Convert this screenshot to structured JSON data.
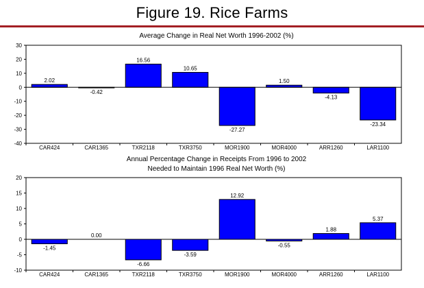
{
  "figure_title": "Figure 19. Rice Farms",
  "colors": {
    "bar": "#0000ff",
    "rule": "#a31f24",
    "axis": "#000000"
  },
  "chart_data": [
    {
      "type": "bar",
      "title": "Average Change in Real Net Worth 1996-2002 (%)",
      "title_lines": [
        "Average Change in Real Net Worth 1996-2002 (%)"
      ],
      "categories": [
        "CAR424",
        "CAR1365",
        "TXR2118",
        "TXR3750",
        "MOR1900",
        "MOR4000",
        "ARR1260",
        "LAR1100"
      ],
      "values": [
        2.02,
        -0.42,
        16.56,
        10.65,
        -27.27,
        1.5,
        -4.13,
        -23.34
      ],
      "value_labels": [
        "2.02",
        "-0.42",
        "16.56",
        "10.65",
        "-27.27",
        "1.50",
        "-4.13",
        "-23.34"
      ],
      "ylim": [
        -40,
        30
      ],
      "yticks": [
        30,
        20,
        10,
        0,
        -10,
        -20,
        -30,
        -40
      ],
      "xlabel": "",
      "ylabel": "",
      "grid": false
    },
    {
      "type": "bar",
      "title": "Annual Percentage Change in Receipts From 1996 to 2002 Needed to Maintain 1996 Real Net Worth (%)",
      "title_lines": [
        "Annual Percentage Change in Receipts From 1996 to 2002",
        "Needed to Maintain 1996 Real Net Worth (%)"
      ],
      "categories": [
        "CAR424",
        "CAR1365",
        "TXR2118",
        "TXR3750",
        "MOR1900",
        "MOR4000",
        "ARR1260",
        "LAR1100"
      ],
      "values": [
        -1.45,
        0.0,
        -6.66,
        -3.59,
        12.92,
        -0.55,
        1.88,
        5.37
      ],
      "value_labels": [
        "-1.45",
        "0.00",
        "-6.66",
        "-3.59",
        "12.92",
        "-0.55",
        "1.88",
        "5.37"
      ],
      "ylim": [
        -10,
        20
      ],
      "yticks": [
        20,
        15,
        10,
        5,
        0,
        -5,
        -10
      ],
      "xlabel": "",
      "ylabel": "",
      "grid": false
    }
  ]
}
